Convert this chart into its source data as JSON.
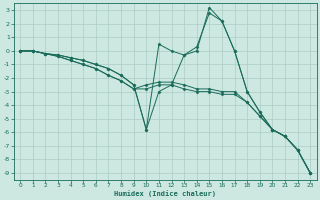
{
  "xlabel": "Humidex (Indice chaleur)",
  "bg_color": "#cce8e0",
  "grid_color": "#aaccc4",
  "line_color": "#1a6b5a",
  "xlim": [
    -0.5,
    23.5
  ],
  "ylim": [
    -9.5,
    3.5
  ],
  "xticks": [
    0,
    1,
    2,
    3,
    4,
    5,
    6,
    7,
    8,
    9,
    10,
    11,
    12,
    13,
    14,
    15,
    16,
    17,
    18,
    19,
    20,
    21,
    22,
    23
  ],
  "yticks": [
    3,
    2,
    1,
    0,
    -1,
    -2,
    -3,
    -4,
    -5,
    -6,
    -7,
    -8,
    -9
  ],
  "lines": [
    {
      "x": [
        0,
        1,
        2,
        3,
        4,
        5,
        6,
        7,
        8,
        9,
        10,
        11,
        12,
        13,
        14,
        15,
        16,
        17,
        18,
        19,
        20,
        21,
        22,
        23
      ],
      "y": [
        0,
        0,
        -0.2,
        -0.3,
        -0.5,
        -0.7,
        -1.0,
        -1.3,
        -1.8,
        -2.5,
        -5.8,
        -3.0,
        -2.5,
        -0.3,
        0.3,
        2.8,
        2.2,
        0.0,
        -3.0,
        -4.5,
        -5.8,
        -6.3,
        -7.3,
        -9.0
      ]
    },
    {
      "x": [
        0,
        1,
        2,
        3,
        4,
        5,
        6,
        7,
        8,
        9,
        10,
        11,
        12,
        13,
        14,
        15,
        16,
        17,
        18,
        19,
        20,
        21,
        22,
        23
      ],
      "y": [
        0,
        0,
        -0.2,
        -0.3,
        -0.5,
        -0.7,
        -1.0,
        -1.3,
        -1.8,
        -2.5,
        -5.8,
        0.5,
        0.0,
        -0.3,
        0.0,
        3.2,
        2.2,
        0.0,
        -3.0,
        -4.5,
        -5.8,
        -6.3,
        -7.3,
        -9.0
      ]
    },
    {
      "x": [
        0,
        1,
        2,
        3,
        4,
        5,
        6,
        7,
        8,
        9,
        10,
        11,
        12,
        13,
        14,
        15,
        16,
        17,
        18,
        19,
        20,
        21,
        22,
        23
      ],
      "y": [
        0,
        0,
        -0.2,
        -0.4,
        -0.7,
        -1.0,
        -1.3,
        -1.8,
        -2.2,
        -2.8,
        -2.8,
        -2.5,
        -2.5,
        -2.8,
        -3.0,
        -3.0,
        -3.2,
        -3.2,
        -3.8,
        -4.8,
        -5.8,
        -6.3,
        -7.3,
        -9.0
      ]
    },
    {
      "x": [
        0,
        1,
        2,
        3,
        4,
        5,
        6,
        7,
        8,
        9,
        10,
        11,
        12,
        13,
        14,
        15,
        16,
        17,
        18,
        19,
        20,
        21,
        22,
        23
      ],
      "y": [
        0,
        0,
        -0.2,
        -0.4,
        -0.7,
        -1.0,
        -1.3,
        -1.8,
        -2.2,
        -2.8,
        -2.5,
        -2.3,
        -2.3,
        -2.5,
        -2.8,
        -2.8,
        -3.0,
        -3.0,
        -3.8,
        -4.8,
        -5.8,
        -6.3,
        -7.3,
        -9.0
      ]
    }
  ]
}
